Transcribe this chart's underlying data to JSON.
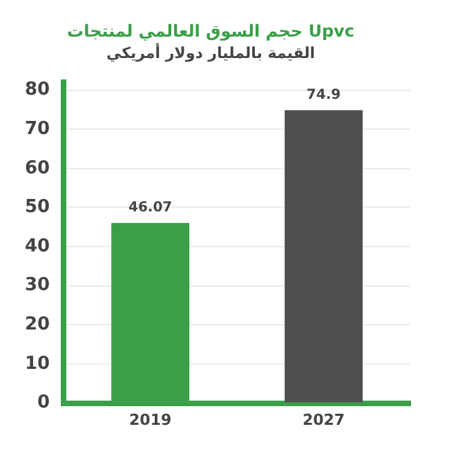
{
  "chart_data": {
    "type": "bar",
    "title": "حجم السوق العالمي لمنتجات Upvc",
    "subtitle": "القيمة بالمليار دولار أمريكي",
    "categories": [
      "2019",
      "2027"
    ],
    "values": [
      46.07,
      74.9
    ],
    "colors": [
      "#3a9f48",
      "#4f4f4f"
    ],
    "ylim": [
      0,
      82
    ],
    "yticks": [
      0,
      10,
      20,
      30,
      40,
      50,
      60,
      70,
      80
    ],
    "grid": "y",
    "data_labels": true
  }
}
